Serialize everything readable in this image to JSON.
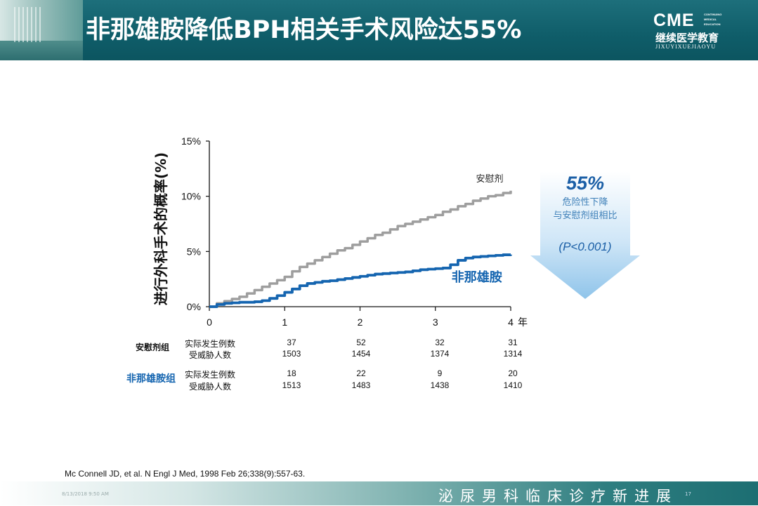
{
  "header": {
    "title": "非那雄胺降低BPH相关手术风险达55%",
    "logo_main": "CME",
    "logo_side": [
      "CONTINUING",
      "MEDICAL",
      "EDUCATION"
    ],
    "logo_cn": "继续医学教育",
    "logo_pinyin": "JIXUYIXUEJIAOYU"
  },
  "chart_data": {
    "type": "line",
    "ylabel": "进行外科手术的概率(%)",
    "x_ticks": [
      "0",
      "1",
      "2",
      "3",
      "4"
    ],
    "x_unit": "年",
    "y_ticks": [
      "0%",
      "5%",
      "10%",
      "15%"
    ],
    "xlim": [
      0,
      4
    ],
    "ylim": [
      0,
      15
    ],
    "series": [
      {
        "name": "安慰剂",
        "color": "#9e9e9e",
        "x": [
          0,
          0.1,
          0.2,
          0.3,
          0.4,
          0.5,
          0.6,
          0.7,
          0.8,
          0.9,
          1.0,
          1.1,
          1.2,
          1.3,
          1.4,
          1.5,
          1.6,
          1.7,
          1.8,
          1.9,
          2.0,
          2.1,
          2.2,
          2.3,
          2.4,
          2.5,
          2.6,
          2.7,
          2.8,
          2.9,
          3.0,
          3.1,
          3.2,
          3.3,
          3.4,
          3.5,
          3.6,
          3.7,
          3.8,
          3.9,
          4.0
        ],
        "y": [
          0,
          0.3,
          0.5,
          0.7,
          0.9,
          1.2,
          1.5,
          1.8,
          2.1,
          2.4,
          2.7,
          3.2,
          3.6,
          3.9,
          4.2,
          4.5,
          4.8,
          5.1,
          5.3,
          5.6,
          5.9,
          6.2,
          6.5,
          6.7,
          7.0,
          7.3,
          7.5,
          7.7,
          7.9,
          8.1,
          8.3,
          8.6,
          8.8,
          9.1,
          9.3,
          9.6,
          9.8,
          10.0,
          10.1,
          10.3,
          10.5
        ]
      },
      {
        "name": "非那雄胺",
        "color": "#1565b0",
        "x": [
          0,
          0.1,
          0.2,
          0.3,
          0.4,
          0.5,
          0.6,
          0.7,
          0.8,
          0.9,
          1.0,
          1.1,
          1.2,
          1.3,
          1.4,
          1.5,
          1.6,
          1.7,
          1.8,
          1.9,
          2.0,
          2.1,
          2.2,
          2.3,
          2.4,
          2.5,
          2.6,
          2.7,
          2.8,
          2.9,
          3.0,
          3.1,
          3.2,
          3.3,
          3.4,
          3.5,
          3.6,
          3.7,
          3.8,
          3.9,
          4.0
        ],
        "y": [
          0,
          0.2,
          0.3,
          0.35,
          0.4,
          0.4,
          0.45,
          0.55,
          0.75,
          1.0,
          1.3,
          1.6,
          1.9,
          2.1,
          2.2,
          2.3,
          2.35,
          2.45,
          2.55,
          2.65,
          2.75,
          2.85,
          2.95,
          3.0,
          3.05,
          3.1,
          3.15,
          3.25,
          3.35,
          3.4,
          3.45,
          3.5,
          3.8,
          4.2,
          4.4,
          4.5,
          4.55,
          4.6,
          4.65,
          4.7,
          4.72
        ]
      }
    ],
    "annotation": {
      "percent": "55%",
      "line1": "危险性下降",
      "line2": "与安慰剂组相比",
      "pvalue": "(P<0.001)"
    }
  },
  "table": {
    "placebo_group": "安慰剂组",
    "fin_group": "非那雄胺组",
    "row_events": "实际发生例数",
    "row_risk": "受威胁人数",
    "placebo_events": [
      "37",
      "52",
      "32",
      "31"
    ],
    "placebo_risk": [
      "1503",
      "1454",
      "1374",
      "1314"
    ],
    "fin_events": [
      "18",
      "22",
      "9",
      "20"
    ],
    "fin_risk": [
      "1513",
      "1483",
      "1438",
      "1410"
    ]
  },
  "reference": "Mc Connell JD, et al. N Engl J Med, 1998 Feb 26;338(9):557-63.",
  "footer": {
    "date": "8/13/2018 9:50 AM",
    "page": "17",
    "slogan": "泌尿男科临床诊疗新进展"
  }
}
